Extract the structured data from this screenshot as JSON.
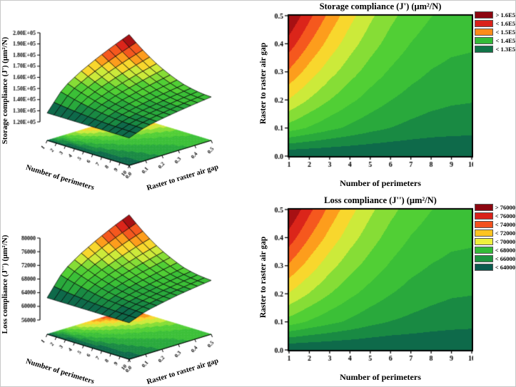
{
  "figure": {
    "background": "#ffffff"
  },
  "colors": {
    "cmap_stops": [
      [
        0.0,
        "#0a5c4e"
      ],
      [
        0.07,
        "#117448"
      ],
      [
        0.15,
        "#1d9440"
      ],
      [
        0.26,
        "#33bb38"
      ],
      [
        0.4,
        "#57d334"
      ],
      [
        0.5,
        "#a8e437"
      ],
      [
        0.58,
        "#eef03c"
      ],
      [
        0.66,
        "#ffc421"
      ],
      [
        0.73,
        "#fc8c1a"
      ],
      [
        0.8,
        "#f4511e"
      ],
      [
        0.88,
        "#d9221a"
      ],
      [
        1.0,
        "#8c0610"
      ]
    ],
    "mesh_line": "#000000",
    "axis_color": "#000000"
  },
  "storage_3d": {
    "z_label": "Storage compliance (J') (μm²/N)",
    "x_label": "Number of perimeters",
    "y_label": "Raster to raster air gap",
    "z_ticks": [
      "2.00E+05",
      "1.90E+05",
      "1.80E+05",
      "1.70E+05",
      "1.60E+05",
      "1.50E+05",
      "1.40E+05",
      "1.30E+05",
      "1.20E+05"
    ],
    "x_ticks": [
      "1",
      "2",
      "3",
      "4",
      "5",
      "6",
      "7",
      "8",
      "9",
      "10"
    ],
    "y_ticks": [
      "0.0",
      "0.1",
      "0.2",
      "0.3",
      "0.4",
      "0.5"
    ]
  },
  "loss_3d": {
    "z_label": "Loss compliance (J'') (μm²/N)",
    "x_label": "Number of perimeters",
    "y_label": "Raster to raster air gap",
    "z_ticks": [
      "80000",
      "76000",
      "72000",
      "68000",
      "64000",
      "60000",
      "56000"
    ],
    "x_ticks": [
      "1",
      "2",
      "3",
      "4",
      "5",
      "6",
      "7",
      "8",
      "9",
      "10"
    ],
    "y_ticks": [
      "0.0",
      "0.1",
      "0.2",
      "0.3",
      "0.4",
      "0.5"
    ]
  },
  "storage_contour": {
    "title": "Storage compliance (J') (μm²/N)",
    "x_label": "Number of perimeters",
    "y_label": "Raster to raster air gap",
    "x_ticks": [
      "1",
      "2",
      "3",
      "4",
      "5",
      "6",
      "7",
      "8",
      "9",
      "10"
    ],
    "y_ticks": [
      "0.0",
      "0.1",
      "0.2",
      "0.3",
      "0.4",
      "0.5"
    ],
    "legend": [
      {
        "label": "> 1.6E5",
        "color": "#8c0610"
      },
      {
        "label": "< 1.6E5",
        "color": "#d9221a"
      },
      {
        "label": "< 1.5E5",
        "color": "#fc8c1a"
      },
      {
        "label": "< 1.4E5",
        "color": "#33bb38"
      },
      {
        "label": "< 1.3E5",
        "color": "#117448"
      }
    ]
  },
  "loss_contour": {
    "title": "Loss compliance (J'') (μm²/N)",
    "x_label": "Number of perimeters",
    "y_label": "Raster to raster air gap",
    "x_ticks": [
      "1",
      "2",
      "3",
      "4",
      "5",
      "6",
      "7",
      "8",
      "9",
      "10"
    ],
    "y_ticks": [
      "0.0",
      "0.1",
      "0.2",
      "0.3",
      "0.4",
      "0.5"
    ],
    "legend": [
      {
        "label": "> 76000",
        "color": "#8c0610"
      },
      {
        "label": "< 76000",
        "color": "#d9221a"
      },
      {
        "label": "< 74000",
        "color": "#f4511e"
      },
      {
        "label": "< 72000",
        "color": "#ffc421"
      },
      {
        "label": "< 70000",
        "color": "#eef03c"
      },
      {
        "label": "< 68000",
        "color": "#33bb38"
      },
      {
        "label": "< 66000",
        "color": "#1d9440"
      },
      {
        "label": "< 64000",
        "color": "#0a5c4e"
      }
    ]
  },
  "chart_data": [
    {
      "id": "storage-compliance-3d-surface",
      "type": "surface",
      "zlabel": "Storage compliance (J') (μm²/N)",
      "xlabel": "Number of perimeters",
      "ylabel": "Raster to raster air gap",
      "x": [
        1,
        2,
        3,
        4,
        5,
        6,
        7,
        8,
        9,
        10
      ],
      "y": [
        0.0,
        0.1,
        0.2,
        0.3,
        0.4,
        0.5
      ],
      "z": [
        [
          128000,
          128000,
          128000,
          128000,
          128000,
          128000,
          128000,
          128000,
          128000,
          128000
        ],
        [
          146300,
          143600,
          141200,
          139200,
          137400,
          136000,
          134900,
          134100,
          133700,
          133500
        ],
        [
          155700,
          151600,
          148000,
          144900,
          142300,
          140100,
          138500,
          137300,
          136600,
          136300
        ],
        [
          163300,
          158100,
          153500,
          149600,
          146200,
          143500,
          141400,
          139800,
          138900,
          138600
        ],
        [
          170000,
          163800,
          158400,
          153700,
          149700,
          146400,
          143900,
          142100,
          141000,
          140600
        ],
        [
          176000,
          168900,
          162700,
          157300,
          152800,
          149000,
          146100,
          144100,
          142800,
          142400
        ]
      ],
      "zlim": [
        120000,
        200000
      ],
      "clim": [
        128000,
        176000
      ]
    },
    {
      "id": "storage-compliance-contour",
      "type": "heatmap",
      "title": "Storage compliance (J') (μm²/N)",
      "xlabel": "Number of perimeters",
      "ylabel": "Raster to raster air gap",
      "xlim": [
        1,
        10
      ],
      "ylim": [
        0,
        0.5
      ],
      "legend_levels": [
        "> 1.6E5",
        "< 1.6E5",
        "< 1.5E5",
        "< 1.4E5",
        "< 1.3E5"
      ],
      "z_note": "same value grid as storage-compliance-3d-surface"
    },
    {
      "id": "loss-compliance-3d-surface",
      "type": "surface",
      "zlabel": "Loss compliance (J'') (μm²/N)",
      "xlabel": "Number of perimeters",
      "ylabel": "Raster to raster air gap",
      "x": [
        1,
        2,
        3,
        4,
        5,
        6,
        7,
        8,
        9,
        10
      ],
      "y": [
        0.0,
        0.1,
        0.2,
        0.3,
        0.4,
        0.5
      ],
      "z": [
        [
          62500,
          62500,
          62500,
          62500,
          62500,
          62500,
          62500,
          62500,
          62500,
          62500
        ],
        [
          69000,
          68000,
          67200,
          66500,
          65800,
          65300,
          65000,
          64700,
          64500,
          64400
        ],
        [
          72300,
          70900,
          69600,
          68500,
          67600,
          66800,
          66200,
          65800,
          65500,
          65400
        ],
        [
          75000,
          73200,
          71500,
          70100,
          69000,
          68000,
          67200,
          66700,
          66400,
          66300
        ],
        [
          77400,
          75200,
          73300,
          71600,
          70200,
          69000,
          68100,
          67500,
          67100,
          67000
        ],
        [
          79500,
          77000,
          74800,
          72900,
          71300,
          70000,
          68900,
          68200,
          67800,
          67600
        ]
      ],
      "zlim": [
        56000,
        80000
      ],
      "clim": [
        62500,
        79500
      ]
    },
    {
      "id": "loss-compliance-contour",
      "type": "heatmap",
      "title": "Loss compliance (J'') (μm²/N)",
      "xlabel": "Number of perimeters",
      "ylabel": "Raster to raster air gap",
      "xlim": [
        1,
        10
      ],
      "ylim": [
        0,
        0.5
      ],
      "legend_levels": [
        "> 76000",
        "< 76000",
        "< 74000",
        "< 72000",
        "< 70000",
        "< 68000",
        "< 66000",
        "< 64000"
      ],
      "z_note": "same value grid as loss-compliance-3d-surface"
    }
  ]
}
